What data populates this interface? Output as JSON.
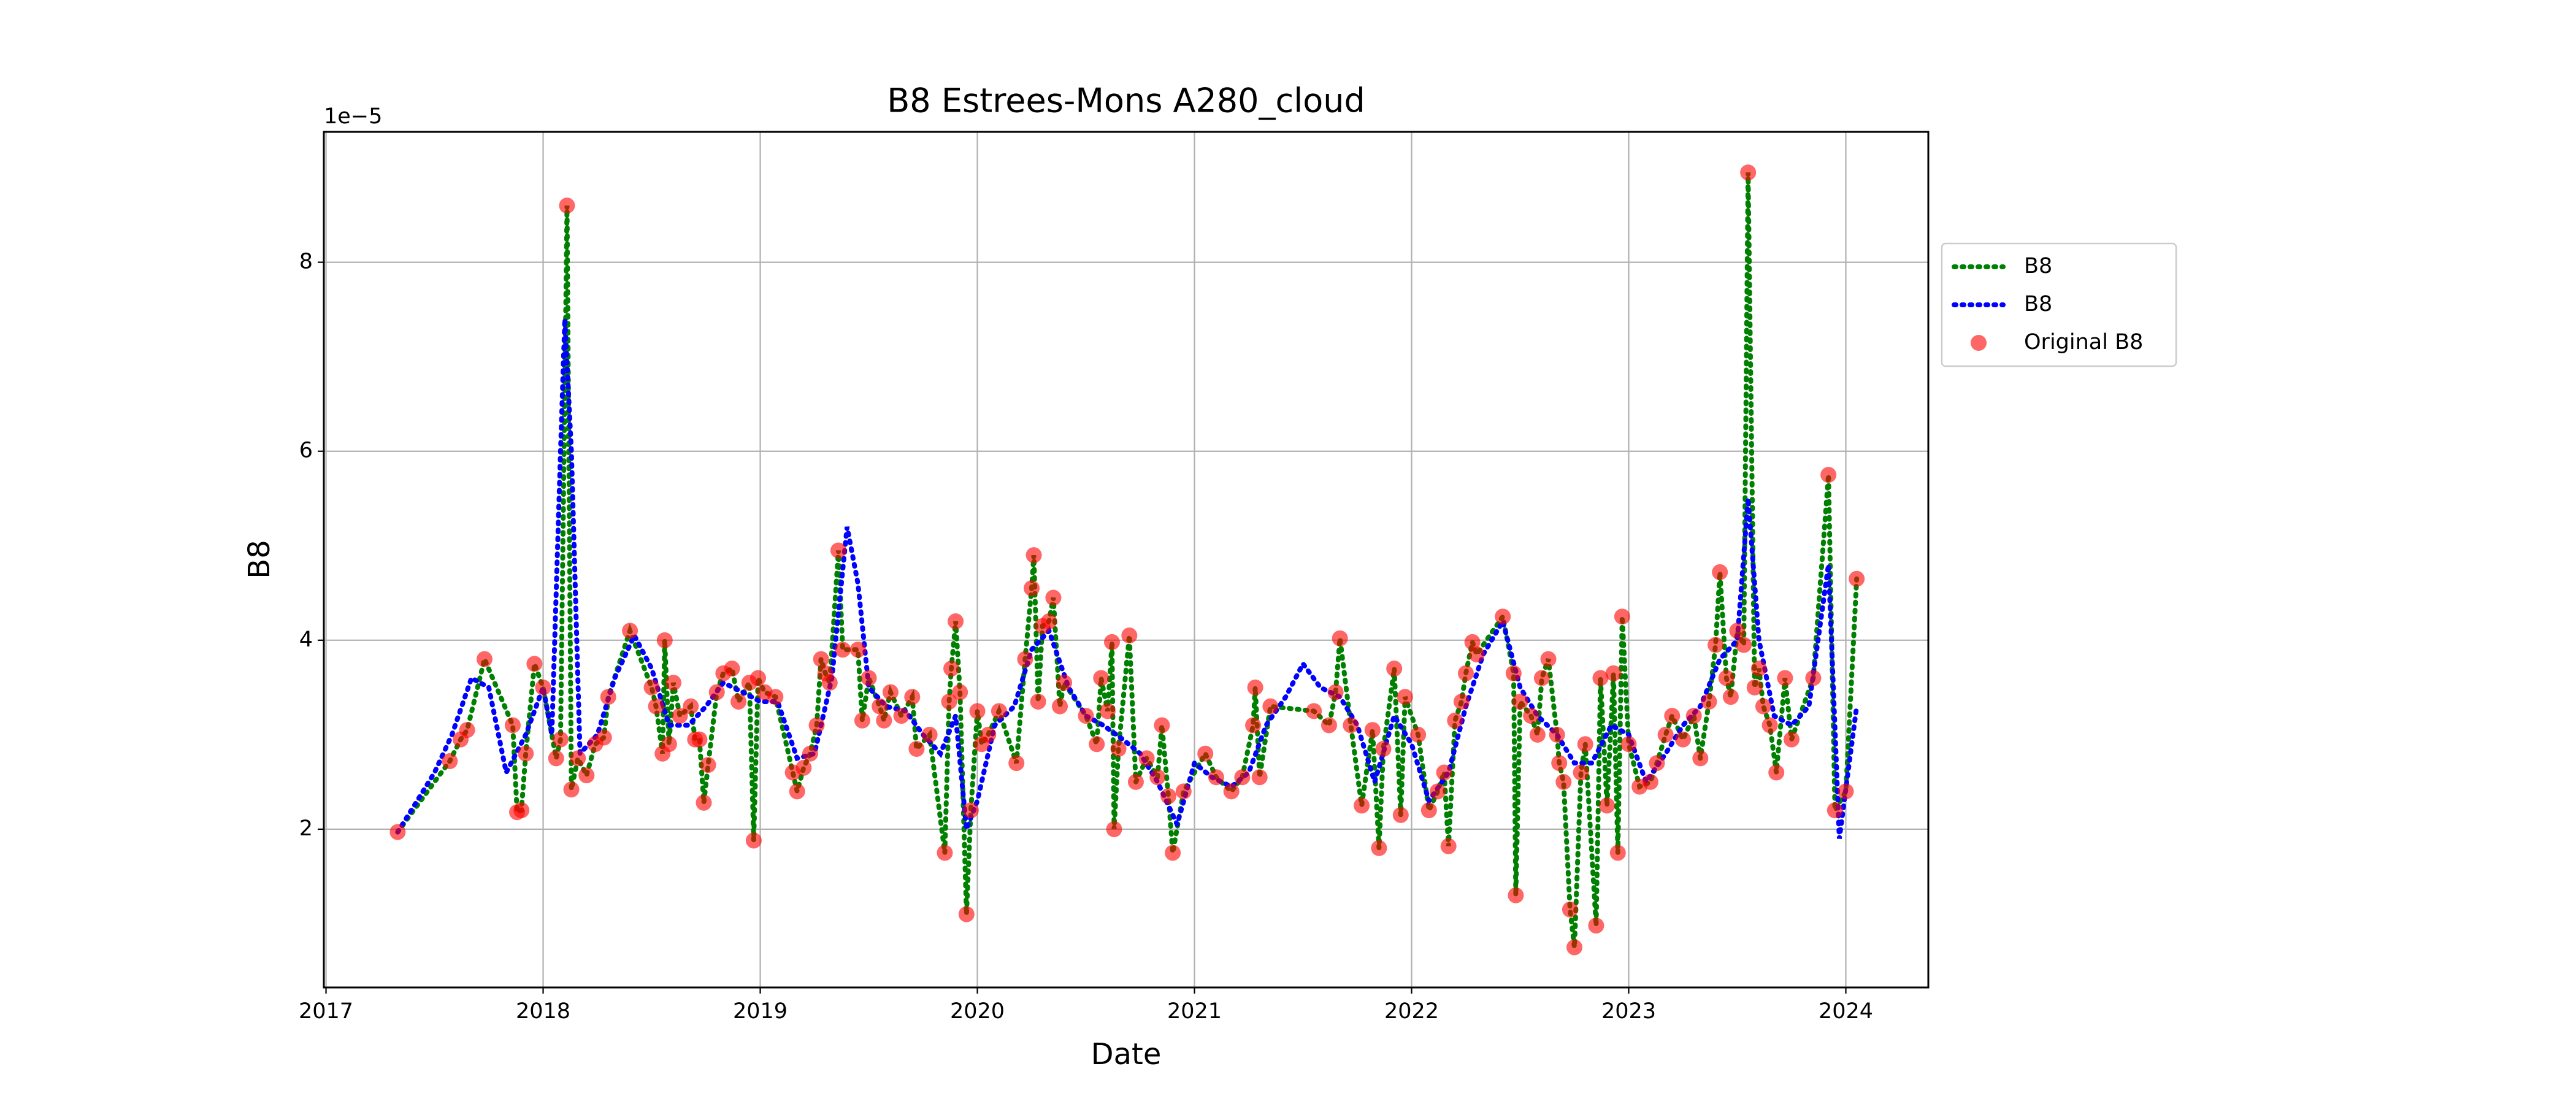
{
  "chart_data": {
    "type": "line",
    "title": "B8 Estrees-Mons A280_cloud",
    "xlabel": "Date",
    "ylabel": "B8",
    "y_offset_label": "1e−5",
    "xlim": [
      2016.99,
      2024.38
    ],
    "ylim": [
      0.325,
      9.38
    ],
    "xticks": [
      2017,
      2018,
      2019,
      2020,
      2021,
      2022,
      2023,
      2024
    ],
    "yticks": [
      2,
      4,
      6,
      8
    ],
    "grid": true,
    "legend": "outside-right",
    "x": [
      2017.33,
      2017.57,
      2017.62,
      2017.65,
      2017.73,
      2017.86,
      2017.88,
      2017.9,
      2017.92,
      2017.96,
      2018.0,
      2018.06,
      2018.08,
      2018.11,
      2018.13,
      2018.16,
      2018.2,
      2018.24,
      2018.28,
      2018.3,
      2018.4,
      2018.5,
      2018.52,
      2018.55,
      2018.56,
      2018.58,
      2018.6,
      2018.63,
      2018.68,
      2018.7,
      2018.72,
      2018.74,
      2018.76,
      2018.8,
      2018.83,
      2018.87,
      2018.9,
      2018.95,
      2018.97,
      2018.99,
      2019.02,
      2019.07,
      2019.15,
      2019.17,
      2019.2,
      2019.23,
      2019.26,
      2019.28,
      2019.3,
      2019.32,
      2019.36,
      2019.38,
      2019.45,
      2019.47,
      2019.5,
      2019.55,
      2019.57,
      2019.6,
      2019.65,
      2019.7,
      2019.72,
      2019.78,
      2019.85,
      2019.87,
      2019.88,
      2019.9,
      2019.92,
      2019.95,
      2019.97,
      2020.0,
      2020.02,
      2020.05,
      2020.1,
      2020.18,
      2020.22,
      2020.25,
      2020.26,
      2020.28,
      2020.3,
      2020.33,
      2020.35,
      2020.38,
      2020.4,
      2020.5,
      2020.55,
      2020.57,
      2020.6,
      2020.62,
      2020.63,
      2020.65,
      2020.7,
      2020.73,
      2020.78,
      2020.83,
      2020.85,
      2020.88,
      2020.9,
      2020.95,
      2021.05,
      2021.1,
      2021.17,
      2021.22,
      2021.27,
      2021.28,
      2021.3,
      2021.35,
      2021.55,
      2021.62,
      2021.65,
      2021.67,
      2021.72,
      2021.77,
      2021.82,
      2021.85,
      2021.87,
      2021.92,
      2021.95,
      2021.97,
      2022.03,
      2022.08,
      2022.12,
      2022.15,
      2022.17,
      2022.2,
      2022.23,
      2022.25,
      2022.28,
      2022.3,
      2022.42,
      2022.47,
      2022.48,
      2022.5,
      2022.55,
      2022.58,
      2022.6,
      2022.63,
      2022.67,
      2022.68,
      2022.7,
      2022.73,
      2022.75,
      2022.78,
      2022.8,
      2022.85,
      2022.87,
      2022.9,
      2022.93,
      2022.95,
      2022.97,
      2023.0,
      2023.05,
      2023.1,
      2023.13,
      2023.17,
      2023.2,
      2023.25,
      2023.3,
      2023.33,
      2023.37,
      2023.4,
      2023.42,
      2023.45,
      2023.47,
      2023.5,
      2023.53,
      2023.55,
      2023.58,
      2023.6,
      2023.62,
      2023.65,
      2023.68,
      2023.72,
      2023.75,
      2023.85,
      2023.92,
      2023.95,
      2024.0,
      2024.05
    ],
    "series": [
      {
        "name": "B8",
        "color": "#008000",
        "values": [
          1.97,
          2.72,
          2.95,
          3.05,
          3.8,
          3.1,
          2.18,
          2.2,
          2.8,
          3.75,
          3.5,
          2.75,
          2.95,
          8.6,
          2.42,
          2.75,
          2.57,
          2.9,
          2.97,
          3.4,
          4.1,
          3.5,
          3.3,
          2.8,
          4.0,
          2.9,
          3.55,
          3.2,
          3.3,
          2.95,
          2.95,
          2.28,
          2.68,
          3.45,
          3.65,
          3.7,
          3.35,
          3.55,
          1.88,
          3.6,
          3.45,
          3.4,
          2.6,
          2.4,
          2.65,
          2.8,
          3.1,
          3.8,
          3.65,
          3.55,
          4.95,
          3.9,
          3.9,
          3.15,
          3.6,
          3.3,
          3.15,
          3.45,
          3.2,
          3.4,
          2.85,
          3.0,
          1.75,
          3.35,
          3.7,
          4.2,
          3.45,
          1.1,
          2.2,
          3.25,
          2.9,
          3.0,
          3.25,
          2.7,
          3.8,
          4.55,
          4.9,
          3.35,
          4.15,
          4.2,
          4.45,
          3.3,
          3.55,
          3.2,
          2.9,
          3.6,
          3.25,
          3.98,
          2.0,
          2.85,
          4.05,
          2.5,
          2.75,
          2.55,
          3.1,
          2.35,
          1.75,
          2.4,
          2.8,
          2.55,
          2.4,
          2.55,
          3.1,
          3.5,
          2.55,
          3.3,
          3.25,
          3.1,
          3.45,
          4.02,
          3.1,
          2.25,
          3.05,
          1.8,
          2.85,
          3.7,
          2.15,
          3.4,
          3.0,
          2.2,
          2.4,
          2.6,
          1.82,
          3.15,
          3.35,
          3.65,
          3.98,
          3.85,
          4.25,
          3.65,
          1.3,
          3.35,
          3.2,
          3.0,
          3.6,
          3.8,
          3.0,
          2.7,
          2.5,
          1.15,
          0.75,
          2.6,
          2.9,
          0.98,
          3.6,
          2.25,
          3.65,
          1.75,
          4.25,
          2.9,
          2.45,
          2.5,
          2.7,
          3.0,
          3.2,
          2.95,
          3.2,
          2.75,
          3.35,
          3.95,
          4.72,
          3.6,
          3.4,
          4.1,
          3.95,
          8.95,
          3.5,
          3.7,
          3.3,
          3.1,
          2.6,
          3.6,
          2.95,
          3.6,
          5.75,
          2.2,
          2.4,
          4.65
        ]
      },
      {
        "name": "B8",
        "color": "#0000ff",
        "x": [
          2017.33,
          2017.42,
          2017.5,
          2017.58,
          2017.67,
          2017.75,
          2017.83,
          2017.92,
          2018.0,
          2018.04,
          2018.08,
          2018.1,
          2018.13,
          2018.17,
          2018.25,
          2018.33,
          2018.42,
          2018.5,
          2018.58,
          2018.67,
          2018.75,
          2018.83,
          2018.92,
          2019.0,
          2019.08,
          2019.17,
          2019.25,
          2019.33,
          2019.4,
          2019.45,
          2019.5,
          2019.58,
          2019.67,
          2019.75,
          2019.83,
          2019.9,
          2019.95,
          2020.0,
          2020.08,
          2020.17,
          2020.25,
          2020.33,
          2020.42,
          2020.5,
          2020.58,
          2020.67,
          2020.75,
          2020.83,
          2020.92,
          2021.0,
          2021.08,
          2021.17,
          2021.25,
          2021.33,
          2021.42,
          2021.5,
          2021.58,
          2021.67,
          2021.75,
          2021.83,
          2021.92,
          2022.0,
          2022.08,
          2022.17,
          2022.25,
          2022.33,
          2022.42,
          2022.5,
          2022.58,
          2022.67,
          2022.75,
          2022.83,
          2022.92,
          2023.0,
          2023.08,
          2023.17,
          2023.25,
          2023.33,
          2023.42,
          2023.5,
          2023.55,
          2023.6,
          2023.67,
          2023.75,
          2023.83,
          2023.92,
          2023.97,
          2024.05
        ],
        "values": [
          1.97,
          2.3,
          2.6,
          3.0,
          3.6,
          3.5,
          2.6,
          3.0,
          3.5,
          3.0,
          6.0,
          7.4,
          6.0,
          2.8,
          3.0,
          3.6,
          4.05,
          3.7,
          3.1,
          3.1,
          3.3,
          3.55,
          3.45,
          3.35,
          3.35,
          2.75,
          2.8,
          3.6,
          5.2,
          4.6,
          3.5,
          3.3,
          3.25,
          3.0,
          2.8,
          3.2,
          2.0,
          2.3,
          3.1,
          3.3,
          3.9,
          4.1,
          3.5,
          3.2,
          3.1,
          2.95,
          2.8,
          2.5,
          2.05,
          2.7,
          2.55,
          2.45,
          2.6,
          3.1,
          3.4,
          3.75,
          3.5,
          3.4,
          3.1,
          2.5,
          3.2,
          2.9,
          2.3,
          2.6,
          3.3,
          3.85,
          4.2,
          3.5,
          3.2,
          3.0,
          2.7,
          2.7,
          3.1,
          3.0,
          2.5,
          2.8,
          3.1,
          3.3,
          3.8,
          4.0,
          5.5,
          4.0,
          3.2,
          3.1,
          3.3,
          4.8,
          1.9,
          3.3
        ]
      },
      {
        "name": "Original B8",
        "color": "#ff0000",
        "type": "scatter",
        "values": [
          1.97,
          2.72,
          2.95,
          3.05,
          3.8,
          3.1,
          2.18,
          2.2,
          2.8,
          3.75,
          3.5,
          2.75,
          2.95,
          8.6,
          2.42,
          2.75,
          2.57,
          2.9,
          2.97,
          3.4,
          4.1,
          3.5,
          3.3,
          2.8,
          4.0,
          2.9,
          3.55,
          3.2,
          3.3,
          2.95,
          2.95,
          2.28,
          2.68,
          3.45,
          3.65,
          3.7,
          3.35,
          3.55,
          1.88,
          3.6,
          3.45,
          3.4,
          2.6,
          2.4,
          2.65,
          2.8,
          3.1,
          3.8,
          3.65,
          3.55,
          4.95,
          3.9,
          3.9,
          3.15,
          3.6,
          3.3,
          3.15,
          3.45,
          3.2,
          3.4,
          2.85,
          3.0,
          1.75,
          3.35,
          3.7,
          4.2,
          3.45,
          1.1,
          2.2,
          3.25,
          2.9,
          3.0,
          3.25,
          2.7,
          3.8,
          4.55,
          4.9,
          3.35,
          4.15,
          4.2,
          4.45,
          3.3,
          3.55,
          3.2,
          2.9,
          3.6,
          3.25,
          3.98,
          2.0,
          2.85,
          4.05,
          2.5,
          2.75,
          2.55,
          3.1,
          2.35,
          1.75,
          2.4,
          2.8,
          2.55,
          2.4,
          2.55,
          3.1,
          3.5,
          2.55,
          3.3,
          3.25,
          3.1,
          3.45,
          4.02,
          3.1,
          2.25,
          3.05,
          1.8,
          2.85,
          3.7,
          2.15,
          3.4,
          3.0,
          2.2,
          2.4,
          2.6,
          1.82,
          3.15,
          3.35,
          3.65,
          3.98,
          3.85,
          4.25,
          3.65,
          1.3,
          3.35,
          3.2,
          3.0,
          3.6,
          3.8,
          3.0,
          2.7,
          2.5,
          1.15,
          0.75,
          2.6,
          2.9,
          0.98,
          3.6,
          2.25,
          3.65,
          1.75,
          4.25,
          2.9,
          2.45,
          2.5,
          2.7,
          3.0,
          3.2,
          2.95,
          3.2,
          2.75,
          3.35,
          3.95,
          4.72,
          3.6,
          3.4,
          4.1,
          3.95,
          8.95,
          3.5,
          3.7,
          3.3,
          3.1,
          2.6,
          3.6,
          2.95,
          3.6,
          5.75,
          2.2,
          2.4,
          4.65
        ]
      }
    ]
  }
}
